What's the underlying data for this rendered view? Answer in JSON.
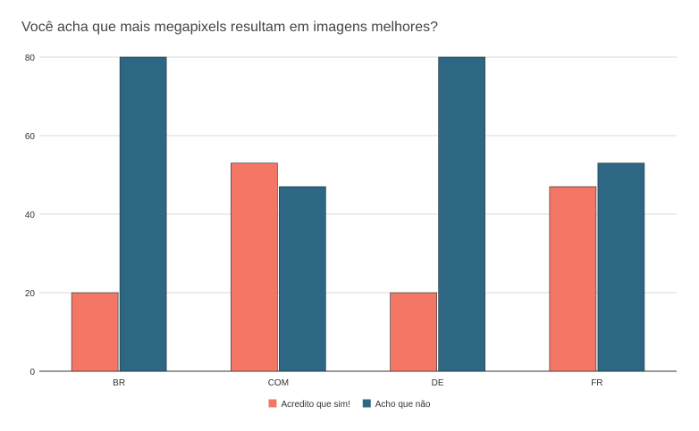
{
  "chart_data": {
    "type": "bar",
    "title": "Você acha que mais megapixels resultam em imagens melhores?",
    "xlabel": "",
    "ylabel": "",
    "categories": [
      "BR",
      "COM",
      "DE",
      "FR"
    ],
    "series": [
      {
        "name": "Acredito que sim!",
        "values": [
          20,
          53,
          20,
          47
        ],
        "color": "#f47766"
      },
      {
        "name": "Acho que não",
        "values": [
          80,
          47,
          80,
          53
        ],
        "color": "#2e6783"
      }
    ],
    "ylim": [
      0,
      80
    ],
    "yticks": [
      "0",
      "20",
      "40",
      "60",
      "80"
    ],
    "grid": true,
    "legend_position": "bottom"
  }
}
